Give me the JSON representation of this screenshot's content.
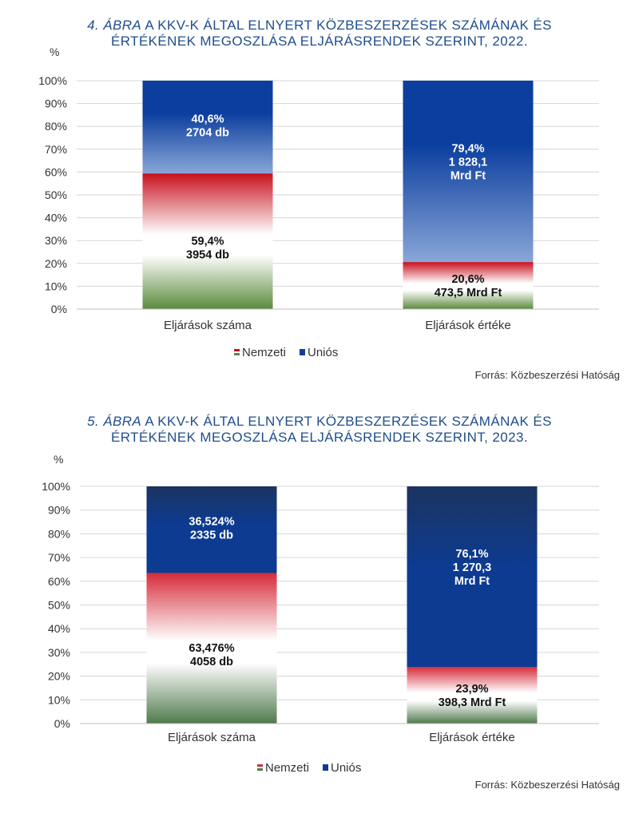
{
  "chart_data": [
    {
      "type": "bar",
      "stacked": true,
      "percent": true,
      "title_prefix": "4. ÁBRA",
      "title_line1": "A KKV-K ÁLTAL ELNYERT KÖZBESZERZÉSEK SZÁMÁNAK ÉS",
      "title_line2": "ÉRTÉKÉNEK MEGOSZLÁSA ELJÁRÁSRENDEK SZERINT, 2022.",
      "ylabel": "%",
      "ylim": [
        0,
        100
      ],
      "yticks": [
        "0%",
        "10%",
        "20%",
        "30%",
        "40%",
        "50%",
        "60%",
        "70%",
        "80%",
        "90%",
        "100%"
      ],
      "grid": true,
      "categories": [
        "Eljárások száma",
        "Eljárások értéke"
      ],
      "series": [
        {
          "name": "Nemzeti",
          "values": [
            59.4,
            20.6
          ],
          "labels": [
            [
              "59,4%",
              "3954 db"
            ],
            [
              "20,6%",
              "473,5 Mrd Ft"
            ]
          ]
        },
        {
          "name": "Uniós",
          "values": [
            40.6,
            79.4
          ],
          "labels": [
            [
              "40,6%",
              "2704 db"
            ],
            [
              "79,4%",
              "1 828,1",
              "Mrd Ft"
            ]
          ]
        }
      ],
      "legend_position": "bottom-center",
      "source": "Forrás: Közbeszerzési Hatóság",
      "colors": {
        "nemzeti_red": "#c8101e",
        "nemzeti_green": "#5a8a3c",
        "unios_blue": "#0b3e9e",
        "unios_light": "#8aa6d8"
      }
    },
    {
      "type": "bar",
      "stacked": true,
      "percent": true,
      "title_prefix": "5. ÁBRA",
      "title_line1": "A KKV-K ÁLTAL ELNYERT KÖZBESZERZÉSEK SZÁMÁNAK ÉS",
      "title_line2": "ÉRTÉKÉNEK MEGOSZLÁSA ELJÁRÁSRENDEK SZERINT, 2023.",
      "ylabel": "%",
      "ylim": [
        0,
        100
      ],
      "yticks": [
        "0%",
        "10%",
        "20%",
        "30%",
        "40%",
        "50%",
        "60%",
        "70%",
        "80%",
        "90%",
        "100%"
      ],
      "grid": true,
      "categories": [
        "Eljárások száma",
        "Eljárások értéke"
      ],
      "series": [
        {
          "name": "Nemzeti",
          "values": [
            63.476,
            23.9
          ],
          "labels": [
            [
              "63,476%",
              "4058 db"
            ],
            [
              "23,9%",
              "398,3 Mrd Ft"
            ]
          ]
        },
        {
          "name": "Uniós",
          "values": [
            36.524,
            76.1
          ],
          "labels": [
            [
              "36,524%",
              "2335 db"
            ],
            [
              "76,1%",
              "1 270,3",
              "Mrd Ft"
            ]
          ]
        }
      ],
      "legend_position": "bottom-center",
      "source": "Forrás: Közbeszerzési Hatóság",
      "colors": {
        "nemzeti_red": "#d62c3a",
        "nemzeti_green": "#4f7a4c",
        "unios_blue": "#0d3b91",
        "unios_dark": "#1b3460"
      }
    }
  ]
}
